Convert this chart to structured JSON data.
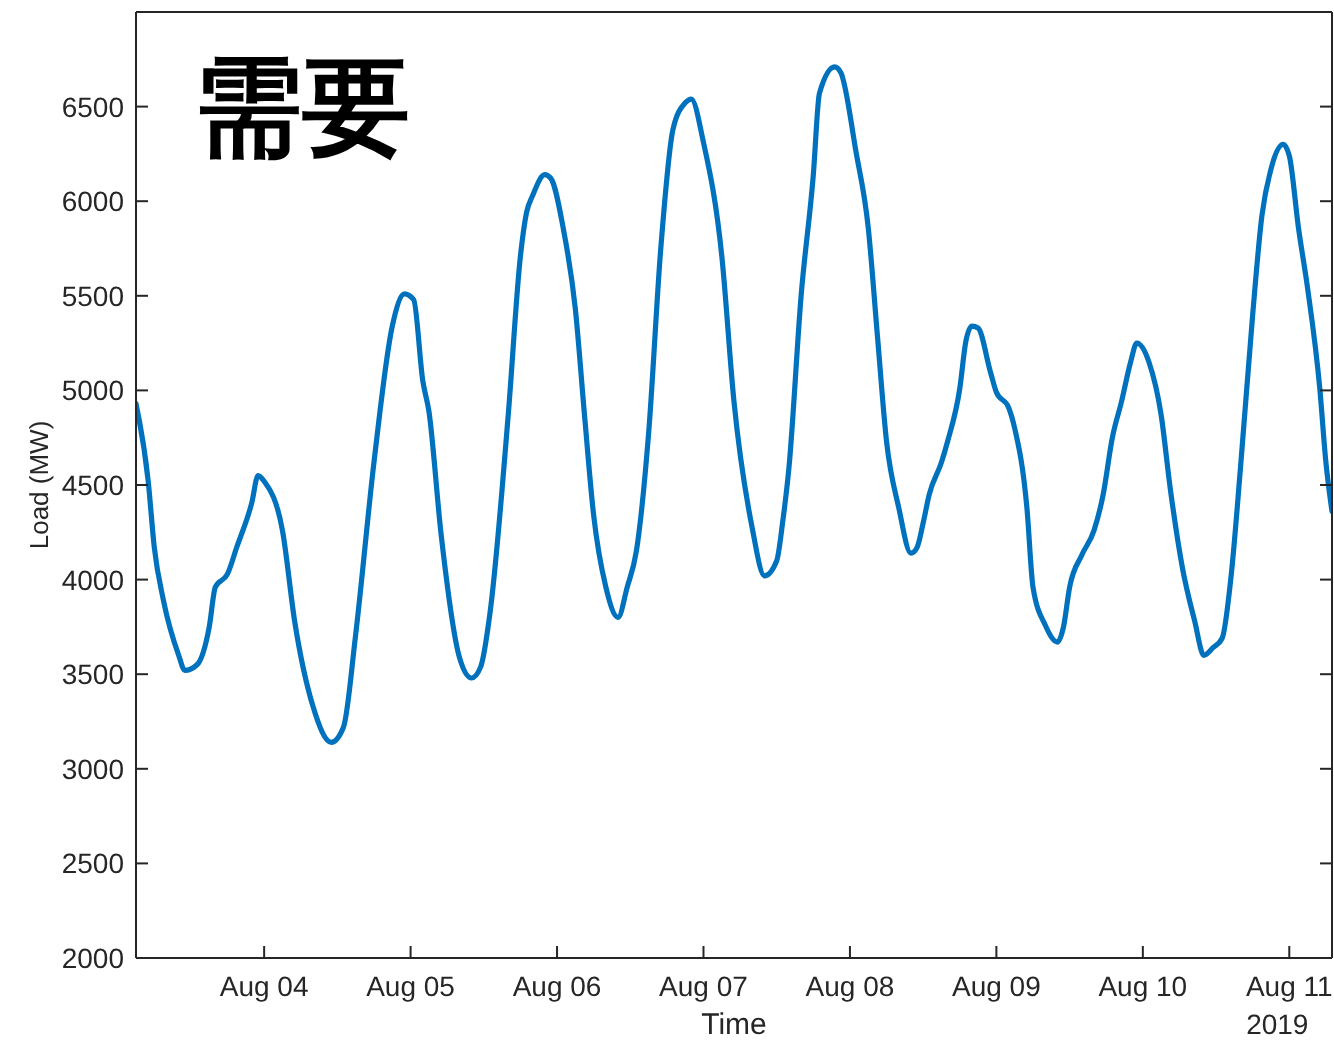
{
  "chart_data": {
    "type": "line",
    "title": "需要",
    "xlabel": "Time",
    "ylabel": "Load (MW)",
    "annotations": [
      "2019"
    ],
    "x": [
      "2019-08-03T03:00",
      "2019-08-03T05:00",
      "2019-08-03T06:00",
      "2019-08-03T07:30",
      "2019-08-03T10:00",
      "2019-08-03T11:00",
      "2019-08-03T13:00",
      "2019-08-03T15:00",
      "2019-08-03T16:00",
      "2019-08-03T18:00",
      "2019-08-03T19:30",
      "2019-08-03T22:00",
      "2019-08-03T23:00",
      "2019-08-04T00:00",
      "2019-08-04T03:00",
      "2019-08-04T05:00",
      "2019-08-04T08:00",
      "2019-08-04T11:00",
      "2019-08-04T13:00",
      "2019-08-04T15:00",
      "2019-08-04T18:00",
      "2019-08-04T21:00",
      "2019-08-04T23:00",
      "2019-08-05T00:30",
      "2019-08-05T02:00",
      "2019-08-05T03:00",
      "2019-08-05T05:00",
      "2019-08-05T08:00",
      "2019-08-05T10:00",
      "2019-08-05T11:30",
      "2019-08-05T13:00",
      "2019-08-05T16:00",
      "2019-08-05T18:00",
      "2019-08-05T19:00",
      "2019-08-05T20:00",
      "2019-08-05T22:00",
      "2019-08-05T23:00",
      "2019-08-06T01:00",
      "2019-08-06T03:00",
      "2019-08-06T04:30",
      "2019-08-06T06:00",
      "2019-08-06T08:00",
      "2019-08-06T10:00",
      "2019-08-06T11:30",
      "2019-08-06T13:00",
      "2019-08-06T15:00",
      "2019-08-06T17:00",
      "2019-08-06T19:00",
      "2019-08-06T21:00",
      "2019-08-06T22:00",
      "2019-08-07T00:00",
      "2019-08-07T03:00",
      "2019-08-07T05:00",
      "2019-08-07T08:00",
      "2019-08-07T10:00",
      "2019-08-07T12:00",
      "2019-08-07T13:00",
      "2019-08-07T14:00",
      "2019-08-07T16:00",
      "2019-08-07T18:00",
      "2019-08-07T19:00",
      "2019-08-07T21:30",
      "2019-08-07T22:30",
      "2019-08-08T01:00",
      "2019-08-08T03:00",
      "2019-08-08T04:30",
      "2019-08-08T06:00",
      "2019-08-08T08:00",
      "2019-08-08T10:00",
      "2019-08-08T11:00",
      "2019-08-08T12:00",
      "2019-08-08T13:00",
      "2019-08-08T15:00",
      "2019-08-08T16:00",
      "2019-08-08T18:00",
      "2019-08-08T19:00",
      "2019-08-08T20:00",
      "2019-08-08T21:00",
      "2019-08-08T23:00",
      "2019-08-09T00:00",
      "2019-08-09T02:00",
      "2019-08-09T03:00",
      "2019-08-09T05:00",
      "2019-08-09T06:00",
      "2019-08-09T08:00",
      "2019-08-09T10:00",
      "2019-08-09T11:00",
      "2019-08-09T12:00",
      "2019-08-09T14:00",
      "2019-08-09T16:00",
      "2019-08-09T17:30",
      "2019-08-09T19:00",
      "2019-08-09T20:30",
      "2019-08-09T22:00",
      "2019-08-09T23:00",
      "2019-08-10T01:00",
      "2019-08-10T03:00",
      "2019-08-10T04:30",
      "2019-08-10T06:30",
      "2019-08-10T08:30",
      "2019-08-10T10:00",
      "2019-08-10T11:30",
      "2019-08-10T13:00",
      "2019-08-10T14:30",
      "2019-08-10T16:00",
      "2019-08-10T18:00",
      "2019-08-10T19:30",
      "2019-08-10T21:00",
      "2019-08-10T23:00",
      "2019-08-11T00:00",
      "2019-08-11T01:30",
      "2019-08-11T03:00",
      "2019-08-11T05:00",
      "2019-08-11T06:00",
      "2019-08-11T07:00"
    ],
    "series": [
      {
        "color": "#0072bd",
        "values": [
          4930,
          4520,
          4170,
          3890,
          3600,
          3520,
          3550,
          3750,
          3960,
          4030,
          4170,
          4410,
          4550,
          4520,
          4260,
          3780,
          3330,
          3140,
          3220,
          3710,
          4620,
          5340,
          5510,
          5480,
          5050,
          4890,
          4240,
          3590,
          3480,
          3540,
          3820,
          4870,
          5710,
          5940,
          6030,
          6140,
          6120,
          5860,
          5430,
          4870,
          4340,
          3960,
          3800,
          3960,
          4150,
          4770,
          5750,
          6380,
          6520,
          6540,
          6310,
          5710,
          4940,
          4270,
          4020,
          4100,
          4310,
          4590,
          5500,
          6140,
          6570,
          6710,
          6680,
          6260,
          5860,
          5290,
          4730,
          4380,
          4140,
          4170,
          4300,
          4450,
          4620,
          4730,
          5010,
          5260,
          5340,
          5330,
          5100,
          4990,
          4910,
          4800,
          4380,
          3960,
          3760,
          3670,
          3750,
          3960,
          4130,
          4260,
          4450,
          4750,
          4940,
          5150,
          5250,
          5150,
          4870,
          4480,
          4060,
          3780,
          3600,
          3640,
          3690,
          4030,
          4590,
          5400,
          5920,
          6170,
          6300,
          6240,
          5860,
          5540,
          5010,
          4620,
          4360
        ]
      }
    ],
    "xlim": [
      "2019-08-03T03:00",
      "2019-08-11T07:00"
    ],
    "xticks": [
      {
        "value": "2019-08-04",
        "label": "Aug 04"
      },
      {
        "value": "2019-08-05",
        "label": "Aug 05"
      },
      {
        "value": "2019-08-06",
        "label": "Aug 06"
      },
      {
        "value": "2019-08-07",
        "label": "Aug 07"
      },
      {
        "value": "2019-08-08",
        "label": "Aug 08"
      },
      {
        "value": "2019-08-09",
        "label": "Aug 09"
      },
      {
        "value": "2019-08-10",
        "label": "Aug 10"
      },
      {
        "value": "2019-08-11",
        "label": "Aug 11"
      }
    ],
    "ylim": [
      2000,
      7000
    ],
    "yticks": [
      2000,
      2500,
      3000,
      3500,
      4000,
      4500,
      5000,
      5500,
      6000,
      6500
    ],
    "marker": "none",
    "line_style": "solid"
  }
}
